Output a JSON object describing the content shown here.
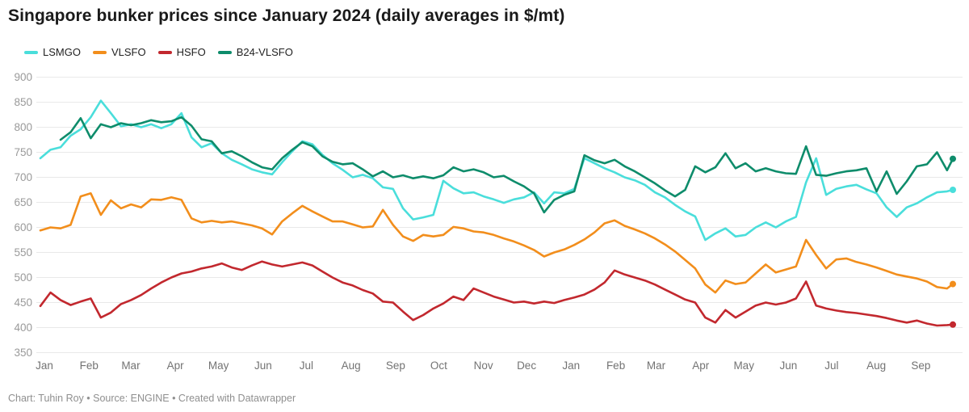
{
  "title": "Singapore bunker prices since January 2024 (daily averages in $/mt)",
  "footer": "Chart: Tuhin Roy • Source: ENGINE • Created with Datawrapper",
  "chart_data": {
    "type": "line",
    "title": "Singapore bunker prices since January 2024 (daily averages in $/mt)",
    "unit": "$/mt",
    "grid": "horizontal",
    "legend_position": "top-left",
    "x_axis": {
      "start": "2024-01-01",
      "end": "2025-09-26",
      "month_labels": [
        "Jan",
        "Feb",
        "Mar",
        "Apr",
        "May",
        "Jun",
        "Jul",
        "Aug",
        "Sep",
        "Oct",
        "Nov",
        "Dec",
        "Jan",
        "Feb",
        "Mar",
        "Apr",
        "May",
        "Jun",
        "Jul",
        "Aug",
        "Sep"
      ],
      "month_start_days": [
        0,
        31,
        60,
        91,
        121,
        152,
        182,
        213,
        244,
        274,
        305,
        335,
        366,
        397,
        425,
        456,
        486,
        517,
        547,
        578,
        609
      ]
    },
    "y_axis": {
      "min": 350,
      "max": 900,
      "step": 50,
      "ticks": [
        900,
        850,
        800,
        750,
        700,
        650,
        600,
        550,
        500,
        450,
        400,
        350
      ]
    },
    "sampling": "weekly estimates read from daily chart; index i = days/7 since 2024-01-01, last point 2025-09-26",
    "series": [
      {
        "name": "LSMGO",
        "color": "#4adedb",
        "values": [
          738,
          755,
          760,
          783,
          796,
          820,
          853,
          828,
          802,
          806,
          800,
          806,
          798,
          806,
          828,
          780,
          760,
          768,
          748,
          735,
          726,
          716,
          710,
          706,
          730,
          752,
          772,
          766,
          745,
          728,
          715,
          700,
          705,
          698,
          680,
          677,
          638,
          616,
          620,
          625,
          693,
          678,
          668,
          670,
          662,
          656,
          649,
          656,
          660,
          670,
          648,
          670,
          668,
          677,
          738,
          728,
          718,
          710,
          700,
          694,
          685,
          670,
          660,
          645,
          632,
          622,
          575,
          588,
          598,
          582,
          585,
          600,
          610,
          600,
          612,
          621,
          690,
          738,
          665,
          677,
          682,
          685,
          676,
          668,
          640,
          621,
          640,
          648,
          660,
          670,
          672,
          675
        ]
      },
      {
        "name": "VLSFO",
        "color": "#f28e1c",
        "values": [
          594,
          600,
          598,
          605,
          662,
          668,
          625,
          654,
          638,
          646,
          640,
          656,
          655,
          660,
          655,
          618,
          610,
          613,
          610,
          612,
          608,
          604,
          598,
          586,
          612,
          628,
          643,
          632,
          622,
          612,
          612,
          606,
          600,
          602,
          635,
          605,
          582,
          573,
          585,
          582,
          585,
          601,
          598,
          592,
          590,
          585,
          578,
          572,
          564,
          555,
          542,
          550,
          556,
          565,
          576,
          590,
          608,
          614,
          603,
          596,
          588,
          578,
          566,
          552,
          535,
          518,
          486,
          470,
          494,
          487,
          490,
          508,
          526,
          510,
          516,
          522,
          575,
          545,
          518,
          536,
          538,
          531,
          526,
          520,
          513,
          506,
          502,
          498,
          492,
          481,
          478,
          487
        ]
      },
      {
        "name": "HSFO",
        "color": "#c2282e",
        "values": [
          443,
          470,
          455,
          445,
          452,
          458,
          420,
          430,
          447,
          455,
          465,
          478,
          490,
          500,
          508,
          512,
          518,
          522,
          528,
          520,
          515,
          524,
          532,
          526,
          522,
          526,
          530,
          524,
          512,
          500,
          490,
          484,
          475,
          468,
          452,
          450,
          432,
          415,
          425,
          438,
          448,
          462,
          455,
          478,
          470,
          462,
          456,
          450,
          452,
          448,
          452,
          449,
          455,
          460,
          466,
          476,
          490,
          514,
          506,
          500,
          494,
          486,
          476,
          466,
          456,
          450,
          420,
          410,
          435,
          420,
          432,
          444,
          450,
          446,
          450,
          458,
          492,
          444,
          438,
          434,
          431,
          429,
          426,
          423,
          419,
          414,
          410,
          414,
          408,
          404,
          405,
          406
        ]
      },
      {
        "name": "B24-VLSFO",
        "color": "#0e8c6b",
        "values": [
          null,
          null,
          775,
          790,
          818,
          778,
          806,
          800,
          808,
          804,
          808,
          814,
          810,
          812,
          820,
          803,
          776,
          772,
          748,
          752,
          742,
          730,
          720,
          716,
          738,
          755,
          770,
          762,
          742,
          731,
          726,
          728,
          716,
          702,
          712,
          700,
          704,
          698,
          702,
          698,
          704,
          720,
          712,
          716,
          710,
          700,
          703,
          692,
          682,
          668,
          630,
          655,
          665,
          672,
          744,
          734,
          728,
          735,
          722,
          712,
          700,
          688,
          674,
          662,
          675,
          722,
          710,
          720,
          748,
          718,
          728,
          712,
          718,
          712,
          708,
          707,
          762,
          705,
          703,
          708,
          712,
          714,
          718,
          672,
          712,
          667,
          692,
          722,
          726,
          750,
          714,
          737
        ]
      }
    ]
  }
}
